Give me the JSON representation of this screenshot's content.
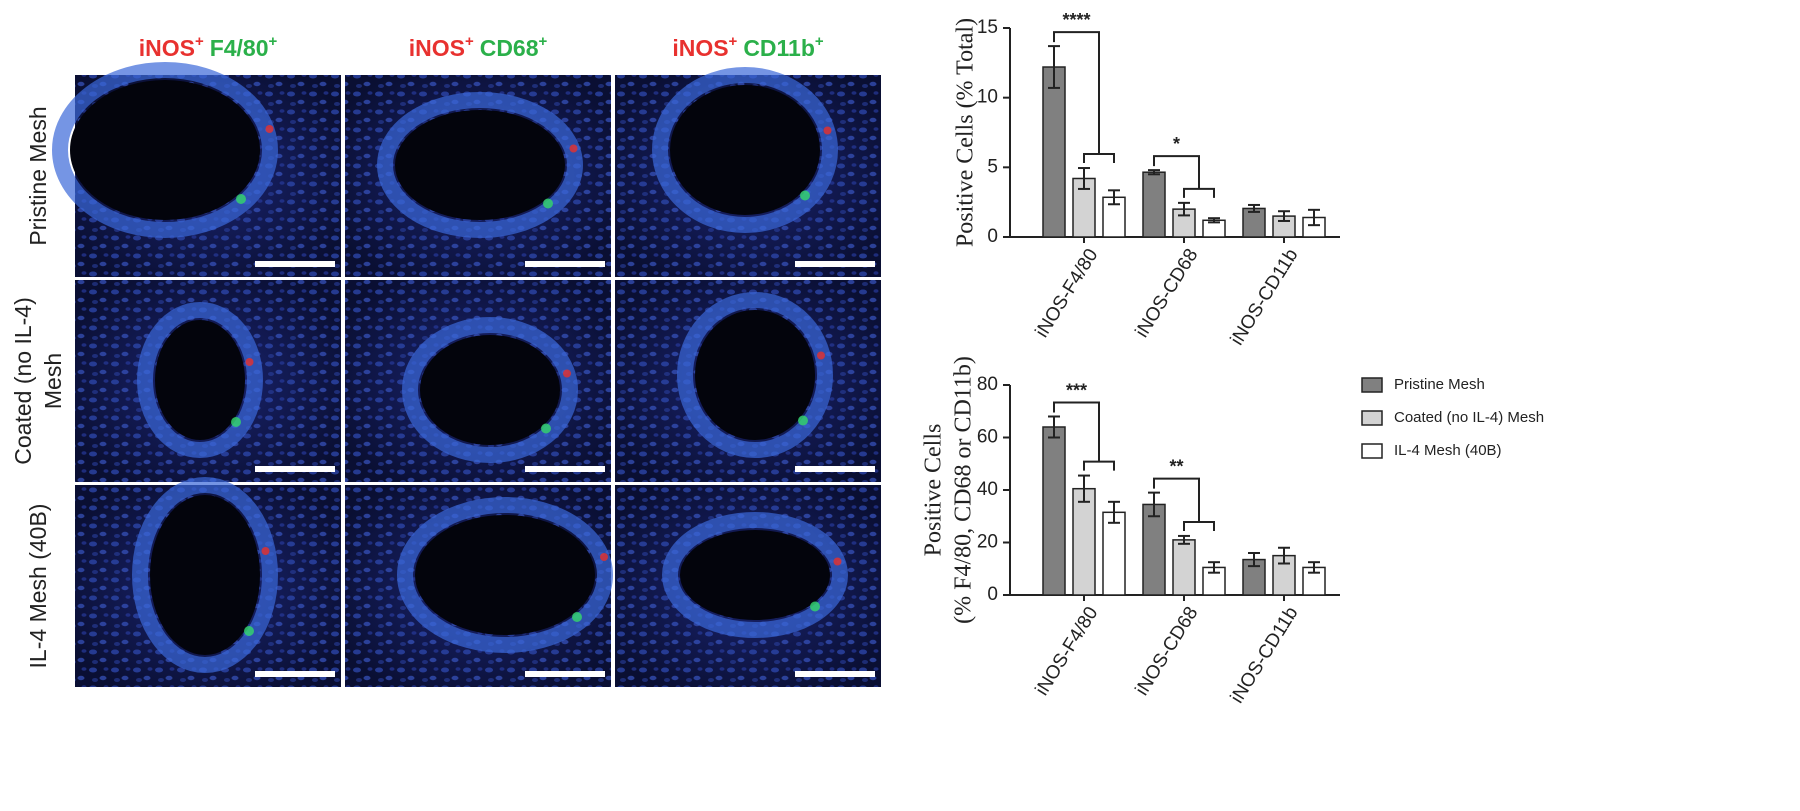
{
  "panels": {
    "columns": [
      {
        "a": "iNOS",
        "a_sup": "+",
        "b": "F4/80",
        "b_sup": "+"
      },
      {
        "a": "iNOS",
        "a_sup": "+",
        "b": "CD68",
        "b_sup": "+"
      },
      {
        "a": "iNOS",
        "a_sup": "+",
        "b": "CD11b",
        "b_sup": "+"
      }
    ],
    "rows": [
      [
        "Pristine Mesh"
      ],
      [
        "Coated (no IL-4)",
        "Mesh"
      ],
      [
        "IL-4 Mesh (40B)"
      ]
    ]
  },
  "chart_data": [
    {
      "type": "bar",
      "y_label": [
        "Positive Cells (% Total)"
      ],
      "categories": [
        "iNOS-F4/80",
        "iNOS-CD68",
        "iNOS-CD11b"
      ],
      "series": [
        {
          "name": "Pristine Mesh",
          "color": "#808080",
          "values": [
            12.2,
            4.65,
            2.05
          ],
          "errors": [
            1.5,
            0.15,
            0.25
          ]
        },
        {
          "name": "Coated (no IL-4) Mesh",
          "color": "#d3d3d3",
          "values": [
            4.2,
            2.0,
            1.5
          ],
          "errors": [
            0.75,
            0.45,
            0.35
          ]
        },
        {
          "name": "IL-4 Mesh (40B)",
          "color": "#ffffff",
          "values": [
            2.85,
            1.2,
            1.4
          ],
          "errors": [
            0.5,
            0.15,
            0.55
          ]
        }
      ],
      "annotations": [
        "****",
        "*"
      ],
      "ylim": [
        0,
        15
      ],
      "yticks": [
        0,
        5,
        10,
        15
      ],
      "legend": false
    },
    {
      "type": "bar",
      "y_label": [
        "Positive Cells",
        "(% F4/80, CD68 or CD11b)"
      ],
      "categories": [
        "iNOS-F4/80",
        "iNOS-CD68",
        "iNOS-CD11b"
      ],
      "series": [
        {
          "name": "Pristine Mesh",
          "color": "#808080",
          "values": [
            64,
            34.5,
            13.5
          ],
          "errors": [
            4,
            4.5,
            2.5
          ]
        },
        {
          "name": "Coated (no IL-4) Mesh",
          "color": "#d3d3d3",
          "values": [
            40.5,
            21,
            15
          ],
          "errors": [
            5,
            1.5,
            3
          ]
        },
        {
          "name": "IL-4 Mesh (40B)",
          "color": "#ffffff",
          "values": [
            31.5,
            10.5,
            10.5
          ],
          "errors": [
            4,
            2,
            2
          ]
        }
      ],
      "annotations": [
        "***",
        "**"
      ],
      "ylim": [
        0,
        80
      ],
      "yticks": [
        0,
        20,
        40,
        60,
        80
      ],
      "legend": true
    }
  ]
}
